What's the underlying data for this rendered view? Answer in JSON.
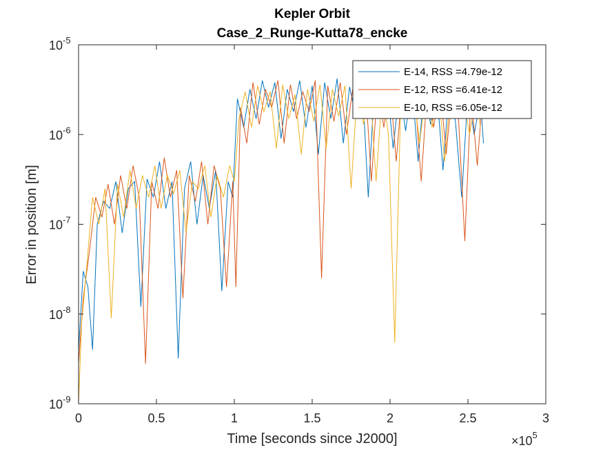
{
  "chart_data": {
    "type": "line",
    "title": "Kepler Orbit",
    "subtitle": "Case_2_Runge-Kutta78_encke",
    "xlabel": "Time [seconds since J2000]",
    "ylabel": "Error in position [m]",
    "x_multiplier": "×10",
    "x_multiplier_exp": "5",
    "xlim": [
      0,
      300000
    ],
    "ylim": [
      1e-09,
      1e-05
    ],
    "yscale": "log",
    "xticks": [
      {
        "value": 0,
        "label": "0"
      },
      {
        "value": 50000,
        "label": "0.5"
      },
      {
        "value": 100000,
        "label": "1"
      },
      {
        "value": 150000,
        "label": "1.5"
      },
      {
        "value": 200000,
        "label": "2"
      },
      {
        "value": 250000,
        "label": "2.5"
      },
      {
        "value": 300000,
        "label": "3"
      }
    ],
    "yticks": [
      {
        "value": 1e-09,
        "base": "10",
        "exp": "-9"
      },
      {
        "value": 1e-08,
        "base": "10",
        "exp": "-8"
      },
      {
        "value": 1e-07,
        "base": "10",
        "exp": "-7"
      },
      {
        "value": 1e-06,
        "base": "10",
        "exp": "-6"
      },
      {
        "value": 1e-05,
        "base": "10",
        "exp": "-5"
      }
    ],
    "grid": false,
    "legend_position": "top-right",
    "series": [
      {
        "name": "E-14, RSS =4.79e-12",
        "color": "#0072BD",
        "points": [
          [
            0,
            4e-09
          ],
          [
            3000,
            3e-08
          ],
          [
            6000,
            2e-08
          ],
          [
            9000,
            4e-09
          ],
          [
            12000,
            1e-07
          ],
          [
            16000,
            1.8e-07
          ],
          [
            20000,
            1.5e-07
          ],
          [
            24000,
            3e-07
          ],
          [
            28000,
            8e-08
          ],
          [
            32000,
            2.5e-07
          ],
          [
            36000,
            3e-07
          ],
          [
            40000,
            1.2e-08
          ],
          [
            44000,
            3.2e-07
          ],
          [
            48000,
            2e-07
          ],
          [
            52000,
            5e-07
          ],
          [
            56000,
            1.5e-07
          ],
          [
            60000,
            3e-07
          ],
          [
            64000,
            3.2e-09
          ],
          [
            68000,
            2.5e-07
          ],
          [
            72000,
            5e-07
          ],
          [
            76000,
            1e-07
          ],
          [
            80000,
            3.5e-07
          ],
          [
            84000,
            1.5e-07
          ],
          [
            88000,
            4e-07
          ],
          [
            92000,
            1.8e-08
          ],
          [
            96000,
            3e-07
          ],
          [
            99000,
            2e-07
          ],
          [
            102000,
            2.5e-06
          ],
          [
            106000,
            1.2e-06
          ],
          [
            110000,
            3.2e-06
          ],
          [
            114000,
            1.5e-06
          ],
          [
            118000,
            4e-06
          ],
          [
            122000,
            2e-06
          ],
          [
            126000,
            3.8e-06
          ],
          [
            130000,
            9e-07
          ],
          [
            134000,
            3.2e-06
          ],
          [
            138000,
            1.8e-06
          ],
          [
            142000,
            4e-06
          ],
          [
            146000,
            1.2e-06
          ],
          [
            150000,
            3.5e-06
          ],
          [
            154000,
            6e-07
          ],
          [
            158000,
            3.8e-06
          ],
          [
            162000,
            1.5e-06
          ],
          [
            166000,
            4.2e-06
          ],
          [
            170000,
            8e-07
          ],
          [
            174000,
            3.4e-06
          ],
          [
            178000,
            1.6e-06
          ],
          [
            182000,
            4.2e-06
          ],
          [
            186000,
            2e-07
          ],
          [
            190000,
            3.5e-06
          ],
          [
            194000,
            1.5e-06
          ],
          [
            198000,
            3.8e-06
          ],
          [
            202000,
            7e-07
          ],
          [
            206000,
            3.2e-06
          ],
          [
            210000,
            1.1e-06
          ],
          [
            214000,
            3.8e-06
          ],
          [
            218000,
            5e-07
          ],
          [
            222000,
            3.5e-06
          ],
          [
            226000,
            1.3e-06
          ],
          [
            230000,
            3.2e-06
          ],
          [
            234000,
            4e-07
          ],
          [
            238000,
            3.6e-06
          ],
          [
            242000,
            1.4e-06
          ],
          [
            246000,
            2e-07
          ],
          [
            250000,
            3e-06
          ],
          [
            254000,
            1e-06
          ],
          [
            258000,
            2.5e-06
          ],
          [
            260000,
            8e-07
          ]
        ]
      },
      {
        "name": "E-12, RSS =6.41e-12",
        "color": "#D95319",
        "points": [
          [
            0,
            2.8e-09
          ],
          [
            3000,
            1.5e-08
          ],
          [
            7000,
            5e-08
          ],
          [
            11000,
            2e-07
          ],
          [
            15000,
            1.2e-07
          ],
          [
            19000,
            2.8e-07
          ],
          [
            23000,
            1e-07
          ],
          [
            27000,
            3.5e-07
          ],
          [
            31000,
            1.5e-07
          ],
          [
            35000,
            4.5e-07
          ],
          [
            39000,
            2e-07
          ],
          [
            43000,
            2.8e-09
          ],
          [
            47000,
            3e-07
          ],
          [
            51000,
            1.5e-07
          ],
          [
            55000,
            5.5e-07
          ],
          [
            59000,
            2e-07
          ],
          [
            63000,
            4e-07
          ],
          [
            67000,
            1.5e-08
          ],
          [
            71000,
            3.5e-07
          ],
          [
            75000,
            1.8e-07
          ],
          [
            79000,
            5e-07
          ],
          [
            83000,
            1e-07
          ],
          [
            87000,
            4.5e-07
          ],
          [
            91000,
            2.5e-07
          ],
          [
            95000,
            2e-08
          ],
          [
            99000,
            3e-07
          ],
          [
            101000,
            2e-08
          ],
          [
            104000,
            2e-06
          ],
          [
            108000,
            8e-07
          ],
          [
            112000,
            3.8e-06
          ],
          [
            116000,
            1.3e-06
          ],
          [
            120000,
            3.2e-06
          ],
          [
            124000,
            2e-06
          ],
          [
            128000,
            4e-06
          ],
          [
            132000,
            8e-07
          ],
          [
            136000,
            3.6e-06
          ],
          [
            140000,
            1.5e-06
          ],
          [
            144000,
            3e-06
          ],
          [
            148000,
            1.8e-06
          ],
          [
            152000,
            4e-06
          ],
          [
            156000,
            2.5e-08
          ],
          [
            160000,
            3.5e-06
          ],
          [
            164000,
            1.4e-06
          ],
          [
            168000,
            3.8e-06
          ],
          [
            172000,
            1e-06
          ],
          [
            176000,
            3.2e-06
          ],
          [
            180000,
            1.9e-06
          ],
          [
            184000,
            4.2e-06
          ],
          [
            188000,
            3e-07
          ],
          [
            192000,
            3.6e-06
          ],
          [
            196000,
            1.2e-06
          ],
          [
            200000,
            3.5e-06
          ],
          [
            204000,
            5e-07
          ],
          [
            208000,
            3.8e-06
          ],
          [
            212000,
            1.6e-06
          ],
          [
            216000,
            2.8e-06
          ],
          [
            220000,
            3e-07
          ],
          [
            224000,
            3.4e-06
          ],
          [
            228000,
            1.2e-06
          ],
          [
            232000,
            3.8e-06
          ],
          [
            236000,
            6e-07
          ],
          [
            240000,
            3.2e-06
          ],
          [
            244000,
            1.5e-06
          ],
          [
            248000,
            6.5e-08
          ],
          [
            252000,
            2.8e-06
          ],
          [
            256000,
            4.5e-07
          ],
          [
            259000,
            2.2e-06
          ]
        ]
      },
      {
        "name": "E-10, RSS =6.05e-12",
        "color": "#EDB120",
        "points": [
          [
            0,
            1e-09
          ],
          [
            2000,
            8e-09
          ],
          [
            5000,
            3e-08
          ],
          [
            9000,
            2e-07
          ],
          [
            13000,
            1e-07
          ],
          [
            17000,
            2.5e-07
          ],
          [
            21000,
            9e-09
          ],
          [
            25000,
            2.8e-07
          ],
          [
            29000,
            1.2e-07
          ],
          [
            33000,
            4e-07
          ],
          [
            37000,
            1.5e-07
          ],
          [
            41000,
            3.5e-07
          ],
          [
            45000,
            2e-07
          ],
          [
            49000,
            4.5e-07
          ],
          [
            53000,
            1.5e-07
          ],
          [
            57000,
            3.5e-07
          ],
          [
            61000,
            2.2e-07
          ],
          [
            65000,
            4e-07
          ],
          [
            69000,
            8e-08
          ],
          [
            73000,
            3e-07
          ],
          [
            77000,
            2.5e-07
          ],
          [
            81000,
            4.5e-07
          ],
          [
            85000,
            1.2e-07
          ],
          [
            89000,
            3.5e-07
          ],
          [
            93000,
            2e-07
          ],
          [
            97000,
            4.5e-07
          ],
          [
            100000,
            3e-07
          ],
          [
            103000,
            1.5e-06
          ],
          [
            107000,
            3e-06
          ],
          [
            111000,
            1.2e-06
          ],
          [
            115000,
            3.5e-06
          ],
          [
            119000,
            1.8e-06
          ],
          [
            123000,
            3e-06
          ],
          [
            127000,
            7e-07
          ],
          [
            131000,
            3.6e-06
          ],
          [
            135000,
            1.5e-06
          ],
          [
            139000,
            2.8e-06
          ],
          [
            143000,
            6e-07
          ],
          [
            147000,
            3.2e-06
          ],
          [
            151000,
            1.4e-06
          ],
          [
            155000,
            3.6e-06
          ],
          [
            159000,
            7e-07
          ],
          [
            163000,
            3.2e-06
          ],
          [
            167000,
            1.6e-06
          ],
          [
            171000,
            3.5e-06
          ],
          [
            175000,
            2.5e-07
          ],
          [
            179000,
            3.2e-06
          ],
          [
            183000,
            1.3e-06
          ],
          [
            187000,
            3.8e-06
          ],
          [
            191000,
            3e-07
          ],
          [
            195000,
            3e-06
          ],
          [
            199000,
            1e-06
          ],
          [
            203000,
            4.8e-09
          ],
          [
            207000,
            2.8e-06
          ],
          [
            211000,
            1.5e-06
          ],
          [
            215000,
            3.2e-06
          ],
          [
            219000,
            8e-07
          ],
          [
            223000,
            3e-06
          ],
          [
            227000,
            1.2e-06
          ],
          [
            231000,
            3.4e-06
          ],
          [
            235000,
            5e-07
          ],
          [
            239000,
            3.2e-06
          ],
          [
            243000,
            1.5e-06
          ],
          [
            247000,
            2.8e-06
          ],
          [
            251000,
            1e-06
          ],
          [
            255000,
            2.6e-06
          ],
          [
            258000,
            1.2e-06
          ]
        ]
      }
    ]
  }
}
